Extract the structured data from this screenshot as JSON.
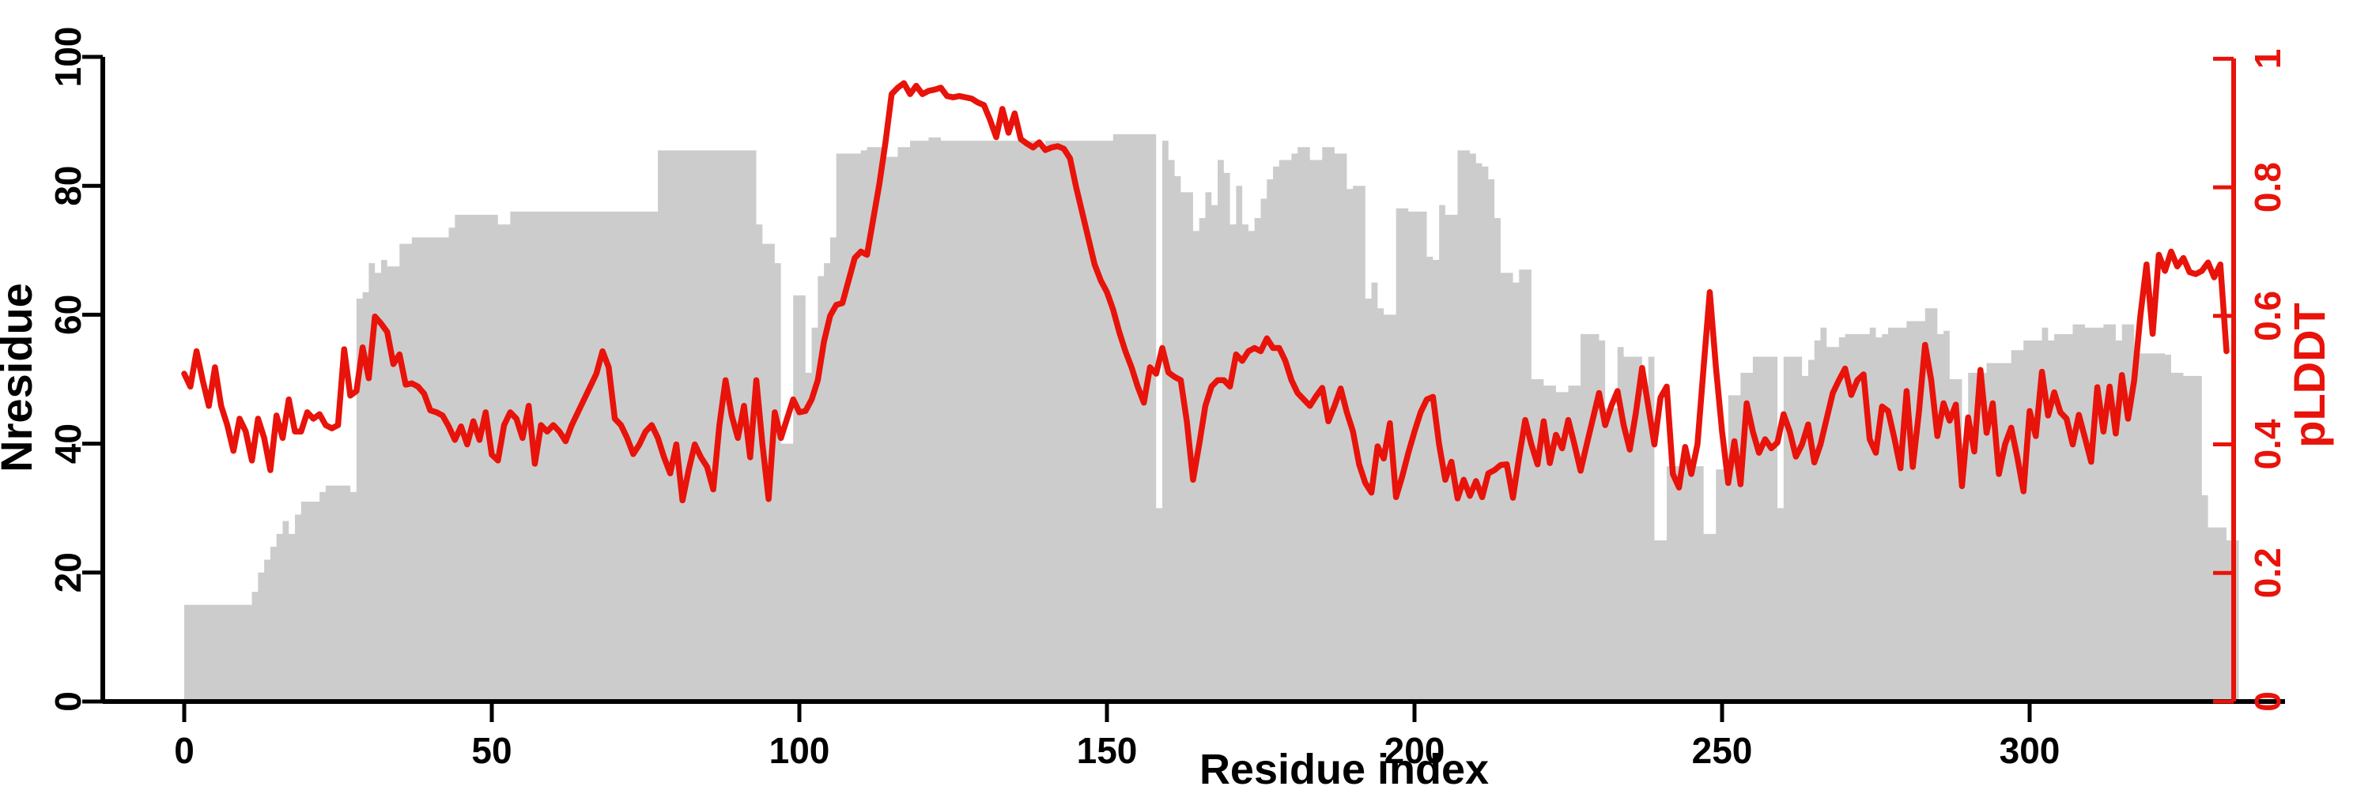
{
  "colors": {
    "area_gray": "#cccccc",
    "line_red": "#e8130a",
    "axis_black": "#000000",
    "background": "#ffffff"
  },
  "chart_data": {
    "type": "area",
    "title": "",
    "xlabel": "Residue index",
    "ylabel_left": "Nresidue",
    "ylabel_right": "pLDDT",
    "x_axis": {
      "tick_values": [
        0,
        50,
        100,
        150,
        200,
        250,
        300
      ],
      "tick_labels": [
        "0",
        "50",
        "100",
        "150",
        "200",
        "250",
        "300"
      ]
    },
    "left_axis": {
      "range": [
        0,
        100
      ],
      "tick_values": [
        0,
        20,
        40,
        60,
        80,
        100
      ],
      "tick_labels": [
        "0",
        "20",
        "40",
        "60",
        "80",
        "100"
      ]
    },
    "right_axis": {
      "range": [
        0,
        1
      ],
      "tick_values": [
        0,
        0.2,
        0.4,
        0.6,
        0.8,
        1
      ],
      "tick_labels": [
        "0",
        "0.2",
        "0.4",
        "0.6",
        "0.8",
        "1"
      ]
    },
    "grid": false,
    "legend": "none",
    "x_start_residue": 0,
    "x_step": 1,
    "series": [
      {
        "name": "Nresidue",
        "type": "step-area",
        "axis": "left",
        "color": "#cccccc",
        "values": [
          15,
          15,
          15,
          15,
          15,
          15,
          15,
          15,
          15,
          15,
          15,
          17,
          20,
          22,
          24,
          26,
          28,
          26,
          29,
          31,
          31,
          31,
          32.5,
          33.5,
          33.5,
          33.5,
          33.5,
          32.5,
          62.5,
          63.5,
          68,
          66.5,
          68.5,
          67.5,
          67.5,
          71,
          71,
          72,
          72,
          72,
          72,
          72,
          72,
          73.5,
          75.5,
          75.5,
          75.5,
          75.5,
          75.5,
          75.5,
          75.5,
          74,
          74,
          76,
          76,
          76,
          76,
          76,
          76,
          76,
          76,
          76,
          76,
          76,
          76,
          76,
          76,
          76,
          76,
          76,
          76,
          76,
          76,
          76,
          76,
          76,
          76,
          85.5,
          85.5,
          85.5,
          85.5,
          85.5,
          85.5,
          85.5,
          85.5,
          85.5,
          85.5,
          85.5,
          85.5,
          85.5,
          85.5,
          85.5,
          85.5,
          74,
          71,
          71,
          68,
          40,
          40,
          63,
          63,
          51,
          58,
          66,
          68,
          72,
          85,
          85,
          85,
          85,
          85.5,
          86,
          86,
          86,
          84.5,
          84.5,
          86,
          86,
          87,
          87,
          87,
          87.5,
          87.5,
          87,
          87,
          87,
          87,
          87,
          87,
          87,
          87,
          87,
          87,
          87,
          87,
          87,
          87,
          87,
          87,
          86,
          87,
          87,
          87,
          87,
          87,
          87,
          87,
          87,
          87,
          87,
          87,
          88,
          88,
          88,
          88,
          88,
          88,
          88,
          30,
          87,
          84,
          81.5,
          79,
          79,
          73,
          75,
          79,
          77,
          84,
          82,
          74,
          80,
          74,
          73,
          75,
          78,
          81,
          83,
          84,
          84,
          85,
          86,
          86,
          84,
          84,
          86,
          86,
          85,
          85,
          79.5,
          80,
          80,
          62.5,
          65,
          61,
          60,
          60,
          76.5,
          76.5,
          76,
          76,
          76,
          69,
          68.5,
          77,
          75.5,
          75.5,
          85.5,
          85.5,
          85,
          83.5,
          83,
          81,
          75,
          66.5,
          66.5,
          65,
          67,
          67,
          50,
          50,
          49,
          49,
          48,
          48,
          49,
          49,
          57,
          57,
          57,
          56,
          45.5,
          45.5,
          55,
          53.5,
          53.5,
          53.5,
          49,
          53.5,
          25,
          25,
          36.5,
          36.5,
          36.5,
          37,
          36.5,
          36.5,
          26,
          26,
          36,
          36,
          47.5,
          47.5,
          51,
          51,
          53.5,
          53.5,
          53.5,
          53.5,
          30,
          53.5,
          53.5,
          53.5,
          50.5,
          53,
          56,
          58,
          55,
          55,
          56.5,
          57,
          57,
          57,
          57,
          58,
          56.5,
          57,
          58,
          58,
          58,
          59,
          59,
          59,
          61,
          61,
          57,
          57.5,
          50,
          50,
          40,
          51,
          51,
          51,
          52.5,
          52.5,
          52.5,
          52.5,
          54.5,
          54.5,
          56,
          56,
          56,
          58,
          56,
          57,
          57,
          57,
          58.5,
          58.5,
          58,
          58,
          58,
          58.5,
          58.5,
          56,
          58.5,
          58.5,
          54,
          54,
          54,
          54,
          54,
          53.8,
          51,
          51,
          50.5,
          50.5,
          50.5,
          32,
          27,
          27,
          27,
          25,
          25
        ]
      },
      {
        "name": "pLDDT",
        "type": "line",
        "axis": "right",
        "color": "#e8130a",
        "values": [
          0.51,
          0.49,
          0.545,
          0.5,
          0.46,
          0.52,
          0.46,
          0.43,
          0.39,
          0.44,
          0.42,
          0.375,
          0.44,
          0.41,
          0.36,
          0.445,
          0.41,
          0.47,
          0.42,
          0.42,
          0.45,
          0.44,
          0.447,
          0.43,
          0.425,
          0.43,
          0.548,
          0.476,
          0.483,
          0.551,
          0.503,
          0.599,
          0.588,
          0.575,
          0.525,
          0.54,
          0.493,
          0.495,
          0.49,
          0.479,
          0.453,
          0.45,
          0.445,
          0.428,
          0.407,
          0.428,
          0.4,
          0.436,
          0.407,
          0.45,
          0.384,
          0.375,
          0.43,
          0.45,
          0.44,
          0.41,
          0.46,
          0.37,
          0.43,
          0.42,
          0.43,
          0.42,
          0.405,
          0.43,
          0.45,
          0.47,
          0.49,
          0.51,
          0.545,
          0.52,
          0.44,
          0.43,
          0.41,
          0.385,
          0.4,
          0.42,
          0.43,
          0.41,
          0.38,
          0.355,
          0.4,
          0.313,
          0.36,
          0.4,
          0.38,
          0.365,
          0.33,
          0.43,
          0.5,
          0.445,
          0.41,
          0.46,
          0.38,
          0.5,
          0.4,
          0.315,
          0.45,
          0.41,
          0.44,
          0.47,
          0.45,
          0.452,
          0.47,
          0.5,
          0.56,
          0.6,
          0.617,
          0.62,
          0.655,
          0.69,
          0.7,
          0.695,
          0.75,
          0.805,
          0.87,
          0.945,
          0.955,
          0.962,
          0.945,
          0.958,
          0.945,
          0.95,
          0.952,
          0.955,
          0.942,
          0.94,
          0.942,
          0.94,
          0.938,
          0.932,
          0.928,
          0.905,
          0.878,
          0.922,
          0.885,
          0.915,
          0.875,
          0.868,
          0.862,
          0.87,
          0.858,
          0.862,
          0.864,
          0.86,
          0.845,
          0.8,
          0.76,
          0.72,
          0.68,
          0.655,
          0.637,
          0.61,
          0.575,
          0.545,
          0.52,
          0.49,
          0.465,
          0.52,
          0.51,
          0.55,
          0.512,
          0.505,
          0.5,
          0.435,
          0.345,
          0.4,
          0.46,
          0.49,
          0.5,
          0.5,
          0.49,
          0.54,
          0.53,
          0.545,
          0.55,
          0.545,
          0.565,
          0.55,
          0.55,
          0.53,
          0.5,
          0.48,
          0.47,
          0.46,
          0.475,
          0.488,
          0.436,
          0.46,
          0.487,
          0.45,
          0.42,
          0.369,
          0.34,
          0.325,
          0.397,
          0.378,
          0.433,
          0.318,
          0.35,
          0.387,
          0.42,
          0.45,
          0.47,
          0.474,
          0.4,
          0.345,
          0.373,
          0.316,
          0.345,
          0.32,
          0.343,
          0.318,
          0.355,
          0.36,
          0.368,
          0.369,
          0.317,
          0.38,
          0.438,
          0.4,
          0.369,
          0.436,
          0.371,
          0.415,
          0.394,
          0.438,
          0.4,
          0.359,
          0.4,
          0.44,
          0.48,
          0.43,
          0.46,
          0.483,
          0.43,
          0.392,
          0.45,
          0.519,
          0.46,
          0.4,
          0.473,
          0.49,
          0.354,
          0.333,
          0.396,
          0.354,
          0.4,
          0.52,
          0.637,
          0.52,
          0.42,
          0.34,
          0.405,
          0.338,
          0.464,
          0.42,
          0.387,
          0.408,
          0.394,
          0.403,
          0.447,
          0.42,
          0.381,
          0.4,
          0.431,
          0.372,
          0.4,
          0.44,
          0.48,
          0.5,
          0.518,
          0.477,
          0.5,
          0.509,
          0.408,
          0.387,
          0.459,
          0.452,
          0.41,
          0.363,
          0.483,
          0.365,
          0.45,
          0.555,
          0.5,
          0.413,
          0.464,
          0.437,
          0.462,
          0.335,
          0.442,
          0.389,
          0.516,
          0.418,
          0.464,
          0.354,
          0.4,
          0.426,
          0.38,
          0.327,
          0.452,
          0.413,
          0.513,
          0.445,
          0.481,
          0.45,
          0.44,
          0.4,
          0.446,
          0.41,
          0.373,
          0.489,
          0.42,
          0.49,
          0.417,
          0.508,
          0.44,
          0.5,
          0.6,
          0.68,
          0.572,
          0.695,
          0.67,
          0.7,
          0.677,
          0.69,
          0.668,
          0.665,
          0.67,
          0.683,
          0.66,
          0.68,
          0.545
        ]
      }
    ]
  }
}
